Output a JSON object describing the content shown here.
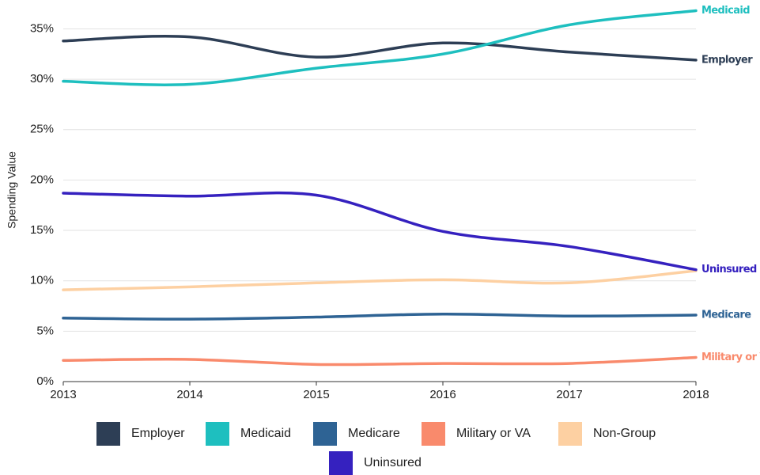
{
  "chart_data": {
    "type": "line",
    "y_label": "Spending Value",
    "x": [
      2013,
      2014,
      2015,
      2016,
      2017,
      2018
    ],
    "xlim": [
      2013,
      2018
    ],
    "xticks": [
      2013,
      2014,
      2015,
      2016,
      2017,
      2018
    ],
    "ylim": [
      0,
      37
    ],
    "yticks": [
      {
        "value": 0,
        "label": "0%"
      },
      {
        "value": 5,
        "label": "5%"
      },
      {
        "value": 10,
        "label": "10%"
      },
      {
        "value": 15,
        "label": "15%"
      },
      {
        "value": 20,
        "label": "20%"
      },
      {
        "value": 25,
        "label": "25%"
      },
      {
        "value": 30,
        "label": "30%"
      },
      {
        "value": 35,
        "label": "35%"
      }
    ],
    "grid": true,
    "series": [
      {
        "name": "Employer",
        "color": "#2d3e55",
        "values": [
          33.8,
          34.2,
          32.2,
          33.6,
          32.7,
          31.9
        ],
        "end_label": true
      },
      {
        "name": "Medicaid",
        "color": "#1ebfbf",
        "values": [
          29.8,
          29.5,
          31.1,
          32.5,
          35.4,
          36.8
        ],
        "end_label": true
      },
      {
        "name": "Medicare",
        "color": "#2e6394",
        "values": [
          6.3,
          6.2,
          6.4,
          6.7,
          6.5,
          6.6
        ],
        "end_label": true
      },
      {
        "name": "Military or VA",
        "color": "#f98a6c",
        "values": [
          2.1,
          2.2,
          1.7,
          1.8,
          1.8,
          2.4
        ],
        "end_label": true
      },
      {
        "name": "Non-Group",
        "color": "#fdd0a2",
        "values": [
          9.1,
          9.4,
          9.8,
          10.1,
          9.8,
          11.0
        ],
        "end_label": false
      },
      {
        "name": "Uninsured",
        "color": "#3521bf",
        "values": [
          18.7,
          18.4,
          18.5,
          14.9,
          13.4,
          11.1
        ],
        "end_label": true
      }
    ]
  }
}
